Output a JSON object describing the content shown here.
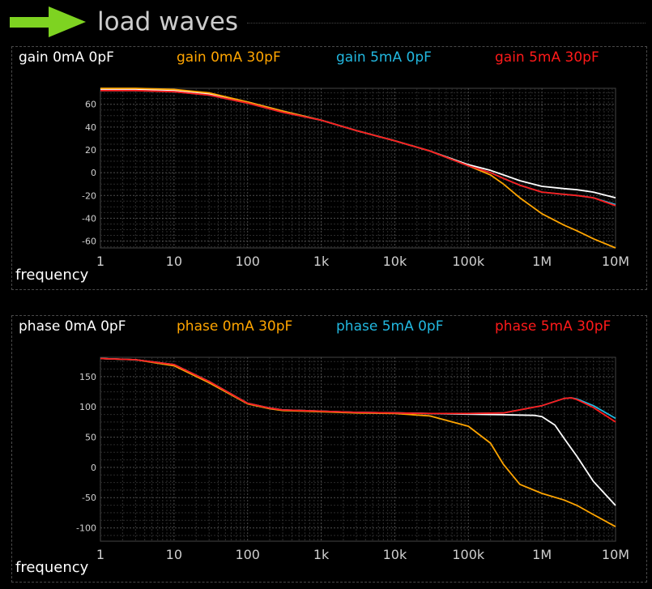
{
  "header": {
    "title": "load waves",
    "arrow_color": "#7ed321"
  },
  "x_tick_labels": [
    "1",
    "10",
    "100",
    "1k",
    "10k",
    "100k",
    "1M",
    "10M"
  ],
  "chart_data": [
    {
      "type": "line",
      "xlabel": "frequency",
      "ylabel": "",
      "xscale": "log",
      "xlim": [
        1,
        10000000
      ],
      "ylim": [
        -66,
        74
      ],
      "yticks": [
        60,
        40,
        20,
        0,
        -20,
        -40,
        -60
      ],
      "grid": true,
      "legend_position": "top",
      "series": [
        {
          "name": "gain 0mA 0pF",
          "color": "#ffffff",
          "x": [
            1,
            3,
            10,
            30,
            100,
            300,
            1000,
            3000,
            10000,
            30000,
            100000,
            200000,
            300000,
            500000,
            1000000,
            2000000,
            3000000,
            5000000,
            10000000
          ],
          "y": [
            73,
            73,
            72,
            69,
            62,
            54,
            46,
            37,
            28,
            19,
            7,
            2,
            -2,
            -7,
            -12,
            -14,
            -15,
            -17,
            -22
          ]
        },
        {
          "name": "gain 0mA 30pF",
          "color": "#ffa500",
          "x": [
            1,
            3,
            10,
            30,
            100,
            300,
            1000,
            3000,
            10000,
            30000,
            100000,
            200000,
            300000,
            500000,
            1000000,
            2000000,
            3000000,
            5000000,
            10000000
          ],
          "y": [
            74,
            74,
            73,
            70,
            62,
            54,
            46,
            37,
            28,
            19,
            6,
            -2,
            -10,
            -22,
            -36,
            -46,
            -51,
            -58,
            -66
          ]
        },
        {
          "name": "gain 5mA 0pF",
          "color": "#22b8e0",
          "x": [
            1,
            3,
            10,
            30,
            100,
            300,
            1000,
            3000,
            10000,
            30000,
            100000,
            200000,
            300000,
            500000,
            1000000,
            2000000,
            3000000,
            5000000,
            10000000
          ],
          "y": [
            72,
            72,
            71,
            68,
            61,
            53,
            46,
            37,
            28,
            19,
            6,
            0,
            -5,
            -11,
            -17,
            -19,
            -20,
            -22,
            -28
          ]
        },
        {
          "name": "gain 5mA 30pF",
          "color": "#ff1a1a",
          "x": [
            1,
            3,
            10,
            30,
            100,
            300,
            1000,
            3000,
            10000,
            30000,
            100000,
            200000,
            300000,
            500000,
            1000000,
            2000000,
            3000000,
            5000000,
            10000000
          ],
          "y": [
            72,
            72,
            71,
            68,
            61,
            53,
            46,
            37,
            28,
            19,
            6,
            0,
            -5,
            -11,
            -17,
            -19,
            -20,
            -22,
            -29
          ]
        }
      ]
    },
    {
      "type": "line",
      "xlabel": "frequency",
      "ylabel": "",
      "xscale": "log",
      "xlim": [
        1,
        10000000
      ],
      "ylim": [
        -122,
        182
      ],
      "yticks": [
        150,
        100,
        50,
        0,
        -50,
        -100
      ],
      "grid": true,
      "legend_position": "top",
      "series": [
        {
          "name": "phase 0mA 0pF",
          "color": "#ffffff",
          "x": [
            1,
            3,
            10,
            30,
            100,
            200,
            300,
            1000,
            3000,
            10000,
            30000,
            100000,
            300000,
            800000,
            1000000,
            1500000,
            2000000,
            3000000,
            5000000,
            10000000
          ],
          "y": [
            180,
            178,
            170,
            142,
            106,
            98,
            95,
            93,
            91,
            90,
            89,
            88,
            87,
            86,
            84,
            70,
            48,
            18,
            -23,
            -63
          ]
        },
        {
          "name": "phase 0mA 30pF",
          "color": "#ffa500",
          "x": [
            1,
            3,
            10,
            30,
            100,
            200,
            300,
            1000,
            3000,
            10000,
            30000,
            100000,
            200000,
            300000,
            500000,
            1000000,
            2000000,
            3000000,
            5000000,
            10000000
          ],
          "y": [
            180,
            178,
            168,
            140,
            105,
            97,
            94,
            92,
            90,
            89,
            85,
            68,
            40,
            5,
            -28,
            -43,
            -54,
            -63,
            -78,
            -98
          ]
        },
        {
          "name": "phase 5mA 0pF",
          "color": "#22b8e0",
          "x": [
            1,
            3,
            10,
            30,
            100,
            200,
            300,
            1000,
            3000,
            10000,
            30000,
            100000,
            300000,
            1000000,
            2000000,
            2500000,
            3000000,
            5000000,
            10000000
          ],
          "y": [
            180,
            178,
            170,
            142,
            106,
            98,
            95,
            93,
            91,
            90,
            89,
            89,
            90,
            102,
            114,
            115,
            113,
            102,
            81
          ]
        },
        {
          "name": "phase 5mA 30pF",
          "color": "#ff1a1a",
          "x": [
            1,
            3,
            10,
            30,
            100,
            200,
            300,
            1000,
            3000,
            10000,
            30000,
            100000,
            300000,
            1000000,
            2000000,
            2500000,
            3000000,
            5000000,
            10000000
          ],
          "y": [
            180,
            178,
            170,
            142,
            106,
            98,
            95,
            93,
            91,
            90,
            89,
            89,
            90,
            102,
            114,
            115,
            112,
            99,
            75
          ]
        }
      ]
    }
  ]
}
